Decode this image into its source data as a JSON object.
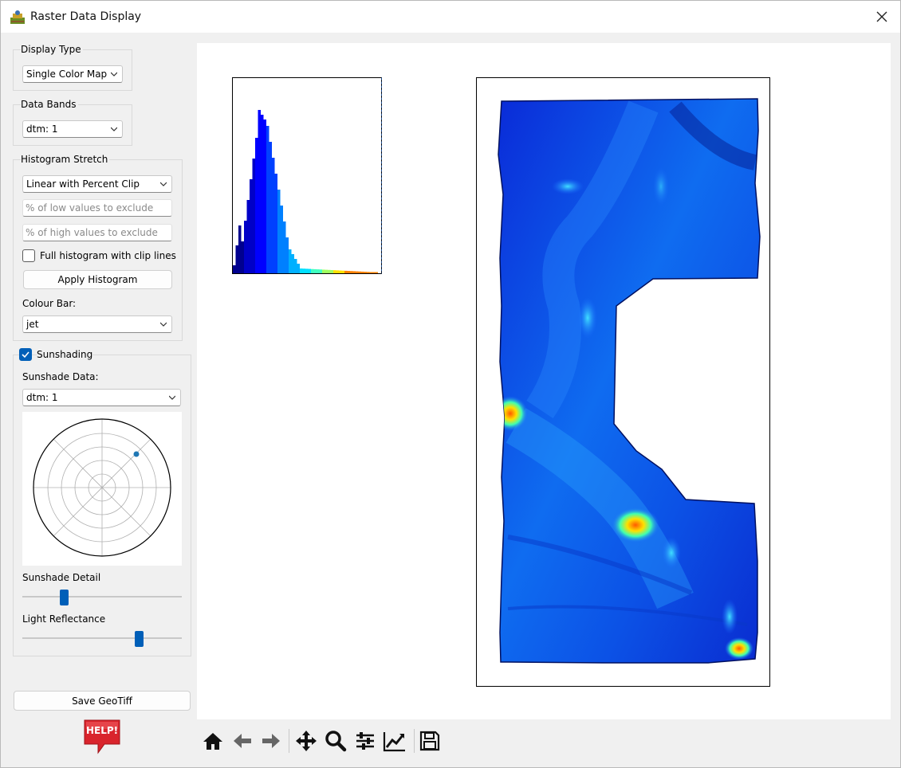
{
  "window": {
    "title": "Raster Data Display",
    "close_glyph": "✕"
  },
  "display_type": {
    "title": "Display Type",
    "value": "Single Color Map"
  },
  "data_bands": {
    "title": "Data Bands",
    "value": "dtm: 1"
  },
  "histogram_stretch": {
    "title": "Histogram Stretch",
    "method": "Linear with Percent Clip",
    "low_placeholder": "% of low values to exclude",
    "high_placeholder": "% of high values to exclude",
    "full_hist_label": "Full histogram with clip lines",
    "full_hist_checked": false,
    "apply_label": "Apply Histogram",
    "colour_bar_label": "Colour Bar:",
    "colour_bar_value": "jet"
  },
  "sunshading": {
    "title": "Sunshading",
    "checked": true,
    "data_label": "Sunshade Data:",
    "data_value": "dtm: 1",
    "detail_label": "Sunshade Detail",
    "detail_fraction": 0.26,
    "reflectance_label": "Light Reflectance",
    "reflectance_fraction": 0.73
  },
  "save_label": "Save GeoTiff",
  "help_label": "HELP!",
  "toolbar": [
    "home-icon",
    "back-arrow-icon",
    "forward-arrow-icon",
    "pan-icon",
    "zoom-icon",
    "configure-subplots-icon",
    "edit-axis-icon",
    "save-icon"
  ],
  "colors": {
    "accent": "#005fb8",
    "help_red": "#d9242c"
  }
}
